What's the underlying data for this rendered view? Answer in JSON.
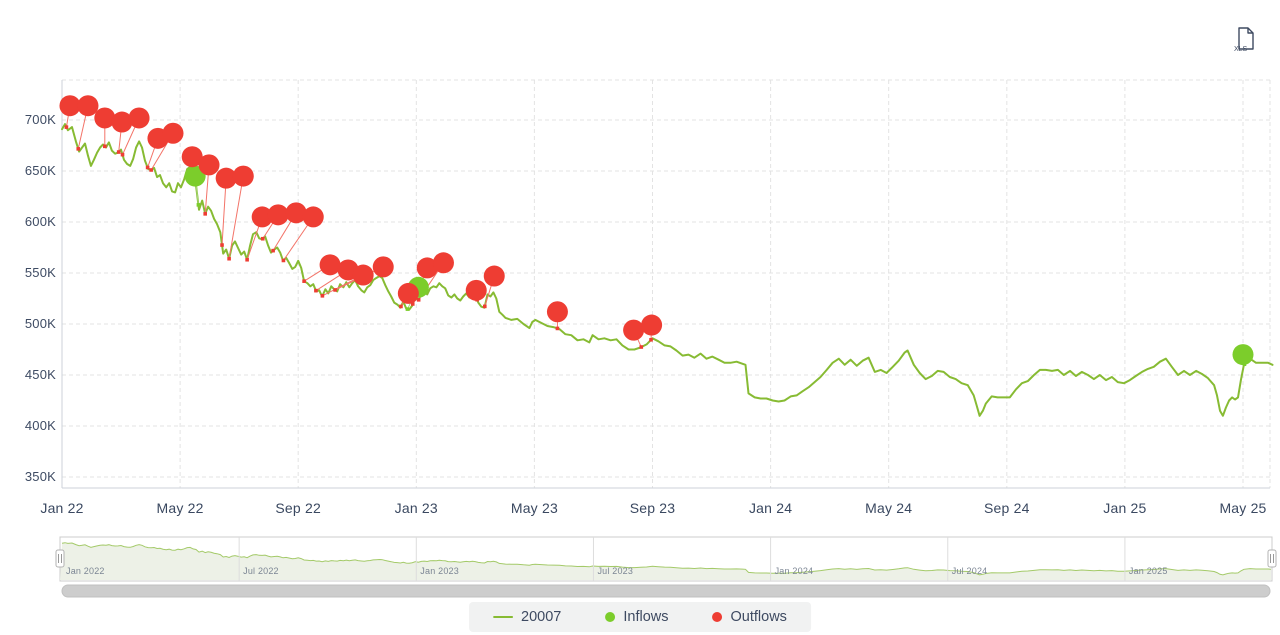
{
  "export_button": {
    "label": "XLS"
  },
  "legend": {
    "series": "20007",
    "inflows": "Inflows",
    "outflows": "Outflows"
  },
  "colors": {
    "series_line": "#87bb33",
    "inflow_marker": "#7ccd2b",
    "outflow_marker": "#ee3d33",
    "outflow_connector": "#f37368",
    "inflow_connector": "#a9d97c",
    "grid": "#e3e3e3",
    "axis_line": "#ccd2da",
    "axis_text": "#3e4b63",
    "nav_line": "#a4ca69",
    "nav_fill": "#edf1e7",
    "nav_border": "#cccccc",
    "nav_grid": "#dddddd",
    "scrollbar_thumb": "#cdcdcd",
    "legend_bg": "#f1f2f2",
    "icon": "#3e4a61"
  },
  "chart_data": {
    "type": "line",
    "title": "",
    "unit": "K",
    "y_ticks": [
      {
        "v": 350,
        "label": "350K"
      },
      {
        "v": 400,
        "label": "400K"
      },
      {
        "v": 450,
        "label": "450K"
      },
      {
        "v": 500,
        "label": "500K"
      },
      {
        "v": 550,
        "label": "550K"
      },
      {
        "v": 600,
        "label": "600K"
      },
      {
        "v": 650,
        "label": "650K"
      },
      {
        "v": 700,
        "label": "700K"
      }
    ],
    "x_ticks": [
      {
        "m": 0,
        "label": "Jan 22"
      },
      {
        "m": 4,
        "label": "May 22"
      },
      {
        "m": 8,
        "label": "Sep 22"
      },
      {
        "m": 12,
        "label": "Jan 23"
      },
      {
        "m": 16,
        "label": "May 23"
      },
      {
        "m": 20,
        "label": "Sep 23"
      },
      {
        "m": 24,
        "label": "Jan 24"
      },
      {
        "m": 28,
        "label": "May 24"
      },
      {
        "m": 32,
        "label": "Sep 24"
      },
      {
        "m": 36,
        "label": "Jan 25"
      },
      {
        "m": 40,
        "label": "May 25"
      }
    ],
    "series": {
      "name": "20007",
      "points": [
        [
          0,
          691
        ],
        [
          0.1,
          696
        ],
        [
          0.2,
          690
        ],
        [
          0.34,
          693
        ],
        [
          0.47,
          679
        ],
        [
          0.58,
          669
        ],
        [
          0.68,
          673
        ],
        [
          0.78,
          677
        ],
        [
          0.88,
          665
        ],
        [
          0.98,
          655
        ],
        [
          1.08,
          661
        ],
        [
          1.19,
          668
        ],
        [
          1.29,
          673
        ],
        [
          1.39,
          676
        ],
        [
          1.49,
          673
        ],
        [
          1.59,
          678
        ],
        [
          1.69,
          670
        ],
        [
          1.8,
          667
        ],
        [
          1.9,
          668
        ],
        [
          2,
          671
        ],
        [
          2.1,
          661
        ],
        [
          2.2,
          657
        ],
        [
          2.31,
          655
        ],
        [
          2.41,
          662
        ],
        [
          2.51,
          673
        ],
        [
          2.61,
          679
        ],
        [
          2.71,
          673
        ],
        [
          2.81,
          660
        ],
        [
          2.92,
          652
        ],
        [
          3.02,
          651
        ],
        [
          3.12,
          653
        ],
        [
          3.22,
          644
        ],
        [
          3.32,
          646
        ],
        [
          3.42,
          638
        ],
        [
          3.53,
          634
        ],
        [
          3.63,
          638
        ],
        [
          3.73,
          630
        ],
        [
          3.83,
          629
        ],
        [
          3.93,
          638
        ],
        [
          4.03,
          634
        ],
        [
          4.14,
          642
        ],
        [
          4.24,
          652
        ],
        [
          4.34,
          654
        ],
        [
          4.44,
          641
        ],
        [
          4.54,
          636
        ],
        [
          4.64,
          612
        ],
        [
          4.75,
          621
        ],
        [
          4.85,
          608
        ],
        [
          4.95,
          615
        ],
        [
          5.05,
          611
        ],
        [
          5.15,
          603
        ],
        [
          5.25,
          598
        ],
        [
          5.36,
          590
        ],
        [
          5.46,
          569
        ],
        [
          5.56,
          573
        ],
        [
          5.66,
          564
        ],
        [
          5.76,
          577
        ],
        [
          5.86,
          581
        ],
        [
          5.97,
          574
        ],
        [
          6.07,
          568
        ],
        [
          6.17,
          571
        ],
        [
          6.27,
          563
        ],
        [
          6.37,
          577
        ],
        [
          6.47,
          588
        ],
        [
          6.58,
          590
        ],
        [
          6.68,
          584
        ],
        [
          6.78,
          583
        ],
        [
          6.88,
          586
        ],
        [
          6.98,
          577
        ],
        [
          7.08,
          570
        ],
        [
          7.19,
          573
        ],
        [
          7.29,
          575
        ],
        [
          7.39,
          570
        ],
        [
          7.49,
          562
        ],
        [
          7.59,
          565
        ],
        [
          7.69,
          560
        ],
        [
          7.8,
          554
        ],
        [
          7.9,
          556
        ],
        [
          8,
          562
        ],
        [
          8.1,
          555
        ],
        [
          8.2,
          542
        ],
        [
          8.31,
          540
        ],
        [
          8.41,
          537
        ],
        [
          8.51,
          539
        ],
        [
          8.61,
          532
        ],
        [
          8.71,
          533
        ],
        [
          8.81,
          527
        ],
        [
          8.92,
          534
        ],
        [
          9.02,
          530
        ],
        [
          9.12,
          537
        ],
        [
          9.22,
          534
        ],
        [
          9.32,
          532
        ],
        [
          9.42,
          539
        ],
        [
          9.53,
          536
        ],
        [
          9.63,
          541
        ],
        [
          9.73,
          536
        ],
        [
          9.83,
          540
        ],
        [
          9.93,
          543
        ],
        [
          10.03,
          537
        ],
        [
          10.14,
          533
        ],
        [
          10.24,
          531
        ],
        [
          10.34,
          536
        ],
        [
          10.44,
          538
        ],
        [
          10.54,
          543
        ],
        [
          10.64,
          545
        ],
        [
          10.75,
          547
        ],
        [
          10.85,
          545
        ],
        [
          10.95,
          538
        ],
        [
          11.05,
          532
        ],
        [
          11.15,
          527
        ],
        [
          11.25,
          521
        ],
        [
          11.36,
          519
        ],
        [
          11.46,
          516
        ],
        [
          11.56,
          522
        ],
        [
          11.66,
          515
        ],
        [
          11.76,
          514
        ],
        [
          11.86,
          518
        ],
        [
          11.97,
          527
        ],
        [
          12.07,
          523
        ],
        [
          12.17,
          530
        ],
        [
          12.27,
          532
        ],
        [
          12.37,
          529
        ],
        [
          12.47,
          535
        ],
        [
          12.58,
          537
        ],
        [
          12.68,
          536
        ],
        [
          12.78,
          540
        ],
        [
          12.88,
          537
        ],
        [
          12.98,
          535
        ],
        [
          13.08,
          528
        ],
        [
          13.19,
          526
        ],
        [
          13.29,
          529
        ],
        [
          13.39,
          525
        ],
        [
          13.49,
          523
        ],
        [
          13.59,
          527
        ],
        [
          13.69,
          530
        ],
        [
          13.8,
          526
        ],
        [
          13.9,
          531
        ],
        [
          14,
          528
        ],
        [
          14.1,
          521
        ],
        [
          14.2,
          517
        ],
        [
          14.31,
          516
        ],
        [
          14.41,
          529
        ],
        [
          14.51,
          527
        ],
        [
          14.61,
          531
        ],
        [
          14.71,
          525
        ],
        [
          14.81,
          512
        ],
        [
          14.92,
          509
        ],
        [
          15.02,
          506
        ],
        [
          15.22,
          504
        ],
        [
          15.42,
          505
        ],
        [
          15.63,
          500
        ],
        [
          15.83,
          496
        ],
        [
          15.93,
          502
        ],
        [
          16.03,
          504
        ],
        [
          16.24,
          501
        ],
        [
          16.44,
          498
        ],
        [
          16.64,
          497
        ],
        [
          16.85,
          495
        ],
        [
          17.05,
          490
        ],
        [
          17.25,
          489
        ],
        [
          17.46,
          484
        ],
        [
          17.66,
          485
        ],
        [
          17.86,
          482
        ],
        [
          17.97,
          489
        ],
        [
          18.17,
          485
        ],
        [
          18.37,
          486
        ],
        [
          18.58,
          484
        ],
        [
          18.78,
          485
        ],
        [
          18.98,
          479
        ],
        [
          19.19,
          475
        ],
        [
          19.39,
          475
        ],
        [
          19.59,
          477
        ],
        [
          19.8,
          480
        ],
        [
          20,
          486
        ],
        [
          20.2,
          483
        ],
        [
          20.41,
          479
        ],
        [
          20.61,
          478
        ],
        [
          20.81,
          474
        ],
        [
          21.02,
          469
        ],
        [
          21.22,
          470
        ],
        [
          21.42,
          467
        ],
        [
          21.63,
          471
        ],
        [
          21.83,
          466
        ],
        [
          22.03,
          468
        ],
        [
          22.24,
          465
        ],
        [
          22.44,
          462
        ],
        [
          22.64,
          462
        ],
        [
          22.85,
          463
        ],
        [
          23.05,
          461
        ],
        [
          23.15,
          460
        ],
        [
          23.25,
          432
        ],
        [
          23.46,
          428
        ],
        [
          23.66,
          427
        ],
        [
          23.86,
          427
        ],
        [
          24.07,
          425
        ],
        [
          24.27,
          424
        ],
        [
          24.47,
          425
        ],
        [
          24.68,
          429
        ],
        [
          24.88,
          430
        ],
        [
          25.08,
          434
        ],
        [
          25.29,
          438
        ],
        [
          25.49,
          443
        ],
        [
          25.69,
          448
        ],
        [
          25.9,
          455
        ],
        [
          26.1,
          462
        ],
        [
          26.31,
          466
        ],
        [
          26.51,
          460
        ],
        [
          26.71,
          465
        ],
        [
          26.92,
          459
        ],
        [
          27.12,
          464
        ],
        [
          27.32,
          467
        ],
        [
          27.53,
          453
        ],
        [
          27.73,
          455
        ],
        [
          27.93,
          452
        ],
        [
          28.14,
          458
        ],
        [
          28.34,
          464
        ],
        [
          28.54,
          472
        ],
        [
          28.64,
          474
        ],
        [
          28.85,
          460
        ],
        [
          29.05,
          452
        ],
        [
          29.25,
          446
        ],
        [
          29.46,
          449
        ],
        [
          29.66,
          454
        ],
        [
          29.86,
          453
        ],
        [
          30.07,
          448
        ],
        [
          30.27,
          446
        ],
        [
          30.47,
          442
        ],
        [
          30.68,
          440
        ],
        [
          30.88,
          430
        ],
        [
          30.98,
          420
        ],
        [
          31.08,
          410
        ],
        [
          31.19,
          415
        ],
        [
          31.29,
          422
        ],
        [
          31.49,
          429
        ],
        [
          31.69,
          428
        ],
        [
          31.9,
          428
        ],
        [
          32.1,
          428
        ],
        [
          32.31,
          436
        ],
        [
          32.51,
          442
        ],
        [
          32.71,
          444
        ],
        [
          32.92,
          450
        ],
        [
          33.12,
          455
        ],
        [
          33.32,
          455
        ],
        [
          33.53,
          454
        ],
        [
          33.73,
          455
        ],
        [
          33.93,
          450
        ],
        [
          34.14,
          454
        ],
        [
          34.34,
          449
        ],
        [
          34.54,
          453
        ],
        [
          34.75,
          450
        ],
        [
          34.95,
          446
        ],
        [
          35.15,
          450
        ],
        [
          35.36,
          445
        ],
        [
          35.56,
          448
        ],
        [
          35.76,
          443
        ],
        [
          35.97,
          442
        ],
        [
          36.17,
          445
        ],
        [
          36.37,
          449
        ],
        [
          36.58,
          453
        ],
        [
          36.78,
          456
        ],
        [
          36.98,
          458
        ],
        [
          37.19,
          463
        ],
        [
          37.39,
          466
        ],
        [
          37.59,
          458
        ],
        [
          37.8,
          450
        ],
        [
          38,
          454
        ],
        [
          38.2,
          450
        ],
        [
          38.41,
          454
        ],
        [
          38.61,
          451
        ],
        [
          38.81,
          447
        ],
        [
          39.02,
          440
        ],
        [
          39.12,
          430
        ],
        [
          39.22,
          415
        ],
        [
          39.32,
          410
        ],
        [
          39.42,
          418
        ],
        [
          39.53,
          425
        ],
        [
          39.63,
          428
        ],
        [
          39.73,
          426
        ],
        [
          39.83,
          428
        ],
        [
          39.93,
          445
        ],
        [
          40.03,
          460
        ],
        [
          40.24,
          466
        ],
        [
          40.44,
          462
        ],
        [
          40.64,
          462
        ],
        [
          40.85,
          462
        ],
        [
          41,
          460
        ]
      ]
    },
    "outflows": {
      "label": "Outflows",
      "points": [
        [
          0.27,
          714,
          0.15
        ],
        [
          0.88,
          714,
          0.55
        ],
        [
          1.45,
          702,
          1.45
        ],
        [
          2.03,
          698,
          1.92
        ],
        [
          2.61,
          702,
          2.05
        ],
        [
          3.25,
          682,
          2.9
        ],
        [
          3.76,
          687,
          3.02
        ],
        [
          4.41,
          664,
          4.5
        ],
        [
          4.98,
          656,
          4.85
        ],
        [
          5.56,
          643,
          5.42
        ],
        [
          6.14,
          645,
          5.66
        ],
        [
          6.78,
          605,
          6.27
        ],
        [
          7.32,
          607,
          6.8
        ],
        [
          7.93,
          609,
          7.15
        ],
        [
          8.51,
          605,
          7.5
        ],
        [
          9.08,
          558,
          8.2
        ],
        [
          9.69,
          553,
          8.6
        ],
        [
          10.2,
          548,
          8.82
        ],
        [
          10.88,
          556,
          9.25
        ],
        [
          11.73,
          530,
          11.48
        ],
        [
          12.37,
          555,
          11.88
        ],
        [
          12.92,
          560,
          12.08
        ],
        [
          14.03,
          533,
          14.06
        ],
        [
          14.64,
          547,
          14.32
        ],
        [
          16.78,
          512,
          16.78
        ],
        [
          19.36,
          494,
          19.62
        ],
        [
          19.97,
          499,
          19.95
        ]
      ]
    },
    "inflows": {
      "label": "Inflows",
      "points": [
        [
          4.51,
          645,
          4.62
        ],
        [
          12.07,
          536,
          11.7
        ],
        [
          40,
          470,
          40.05
        ]
      ]
    },
    "navigator": {
      "ticks": [
        {
          "m": 0,
          "label": "Jan 2022"
        },
        {
          "m": 6,
          "label": "Jul 2022"
        },
        {
          "m": 12,
          "label": "Jan 2023"
        },
        {
          "m": 18,
          "label": "Jul 2023"
        },
        {
          "m": 24,
          "label": "Jan 2024"
        },
        {
          "m": 30,
          "label": "Jul 2024"
        },
        {
          "m": 36,
          "label": "Jan 2025"
        }
      ]
    }
  }
}
